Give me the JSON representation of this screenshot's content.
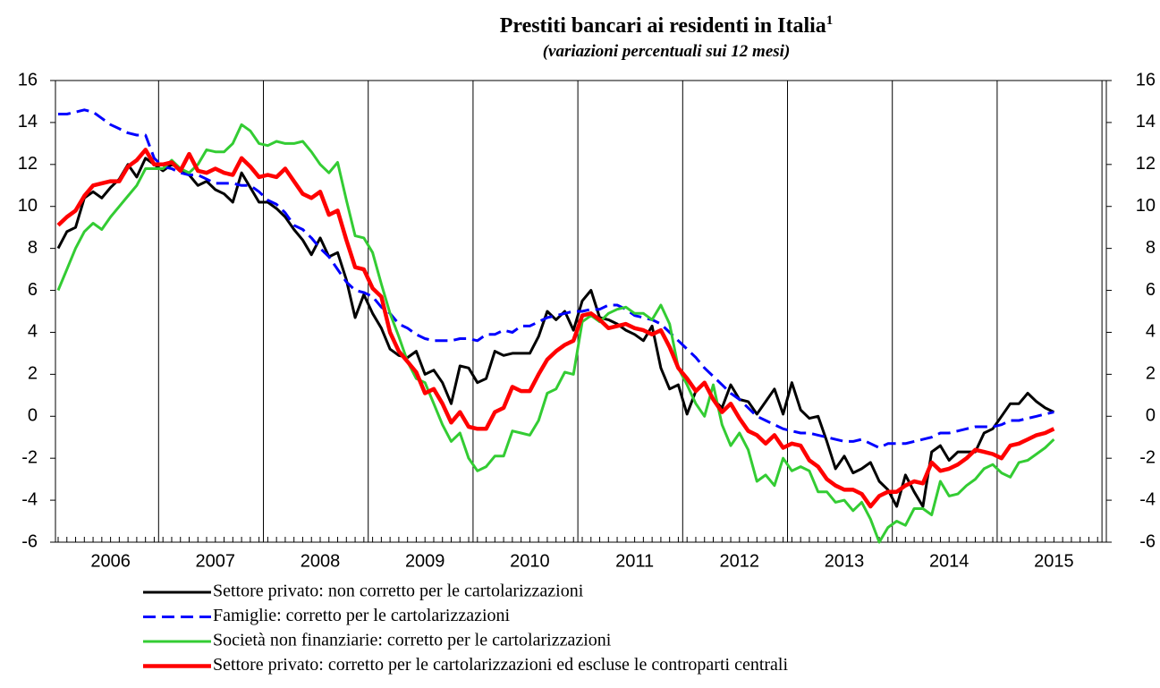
{
  "chart_data": {
    "type": "line",
    "title": "Prestiti bancari ai residenti in Italia",
    "title_note": "1",
    "subtitle": "(variazioni percentuali sui 12 mesi)",
    "categories": [
      null,
      null,
      null,
      null,
      null,
      null,
      "2006",
      null,
      null,
      null,
      null,
      null,
      null,
      null,
      null,
      null,
      null,
      null,
      "2007",
      null,
      null,
      null,
      null,
      null,
      null,
      null,
      null,
      null,
      null,
      null,
      "2008",
      null,
      null,
      null,
      null,
      null,
      null,
      null,
      null,
      null,
      null,
      null,
      "2009",
      null,
      null,
      null,
      null,
      null,
      null,
      null,
      null,
      null,
      null,
      null,
      "2010",
      null,
      null,
      null,
      null,
      null,
      null,
      null,
      null,
      null,
      null,
      null,
      "2011",
      null,
      null,
      null,
      null,
      null,
      null,
      null,
      null,
      null,
      null,
      null,
      "2012",
      null,
      null,
      null,
      null,
      null,
      null,
      null,
      null,
      null,
      null,
      null,
      "2013",
      null,
      null,
      null,
      null,
      null,
      null,
      null,
      null,
      null,
      null,
      null,
      "2014",
      null,
      null,
      null,
      null,
      null,
      null,
      null,
      null,
      null,
      null,
      null,
      "2015",
      null,
      null,
      null,
      null,
      null,
      null
    ],
    "ylim": [
      -6,
      16
    ],
    "yticks": [
      -6,
      -4,
      -2,
      0,
      2,
      4,
      6,
      8,
      10,
      12,
      14,
      16
    ],
    "y2lim": [
      -6,
      16
    ],
    "y2ticks": [
      -6,
      -4,
      -2,
      0,
      2,
      4,
      6,
      8,
      10,
      12,
      14,
      16
    ],
    "legend": "bottom",
    "series": [
      {
        "name": "Settore privato: non corretto per le cartolarizzazioni",
        "color": "#000000",
        "line_style": "solid",
        "values": [
          8.0,
          8.8,
          9.0,
          10.4,
          10.7,
          10.4,
          10.9,
          11.3,
          12.0,
          11.4,
          12.3,
          12.0,
          11.7,
          12.0,
          11.8,
          11.5,
          11.0,
          11.2,
          10.8,
          10.6,
          10.2,
          11.6,
          10.9,
          10.2,
          10.2,
          9.9,
          9.5,
          8.9,
          8.4,
          7.7,
          8.5,
          7.6,
          7.8,
          6.5,
          4.7,
          5.8,
          4.9,
          4.2,
          3.2,
          2.9,
          2.8,
          3.1,
          2.0,
          2.2,
          1.6,
          0.6,
          2.4,
          2.3,
          1.6,
          1.8,
          3.1,
          2.9,
          3.0,
          3.0,
          3.0,
          3.8,
          5.0,
          4.6,
          5.0,
          4.1,
          5.5,
          6.0,
          4.7,
          4.6,
          4.4,
          4.1,
          3.9,
          3.6,
          4.3,
          2.3,
          1.3,
          1.5,
          0.1,
          1.2,
          1.6,
          0.8,
          0.4,
          1.5,
          0.8,
          0.7,
          0.1,
          0.7,
          1.3,
          0.1,
          1.6,
          0.3,
          -0.1,
          0.0,
          -1.2,
          -2.5,
          -1.9,
          -2.7,
          -2.5,
          -2.2,
          -3.1,
          -3.5,
          -4.3,
          -2.8,
          -3.6,
          -4.3,
          -1.7,
          -1.4,
          -2.1,
          -1.7,
          -1.7,
          -1.7,
          -0.8,
          -0.6,
          0.0,
          0.6,
          0.6,
          1.1,
          0.7,
          0.4,
          0.2,
          null,
          null,
          null,
          null,
          null,
          null
        ]
      },
      {
        "name": "Famiglie: corretto per le cartolarizzazioni",
        "color": "#0000ff",
        "line_style": "dashed",
        "values": [
          14.4,
          14.4,
          14.5,
          14.6,
          14.5,
          14.2,
          13.9,
          13.7,
          13.5,
          13.4,
          13.4,
          12.3,
          11.9,
          11.8,
          11.6,
          11.5,
          11.5,
          11.3,
          11.1,
          11.1,
          11.1,
          11.0,
          11.0,
          10.7,
          10.3,
          10.1,
          9.7,
          9.1,
          8.9,
          8.5,
          8.0,
          7.6,
          7.0,
          6.4,
          6.0,
          5.9,
          5.7,
          5.2,
          4.9,
          4.4,
          4.2,
          3.9,
          3.7,
          3.6,
          3.6,
          3.6,
          3.7,
          3.7,
          3.6,
          3.9,
          3.9,
          4.1,
          4.0,
          4.3,
          4.3,
          4.5,
          4.7,
          4.8,
          4.9,
          5.0,
          5.0,
          5.1,
          5.1,
          5.3,
          5.3,
          5.1,
          4.8,
          4.7,
          4.6,
          4.4,
          4.0,
          3.6,
          3.2,
          2.8,
          2.3,
          1.9,
          1.5,
          1.1,
          0.8,
          0.4,
          0.0,
          -0.2,
          -0.4,
          -0.6,
          -0.7,
          -0.8,
          -0.8,
          -0.9,
          -1.0,
          -1.1,
          -1.2,
          -1.2,
          -1.1,
          -1.3,
          -1.5,
          -1.3,
          -1.3,
          -1.3,
          -1.2,
          -1.1,
          -1.0,
          -0.8,
          -0.8,
          -0.7,
          -0.6,
          -0.5,
          -0.5,
          -0.5,
          -0.4,
          -0.2,
          -0.2,
          -0.1,
          0.0,
          0.1,
          0.2,
          null,
          null,
          null,
          null,
          null,
          null
        ]
      },
      {
        "name": "Società non finanziarie: corretto per le cartolarizzazioni",
        "color": "#33cc33",
        "line_style": "solid",
        "values": [
          6.0,
          7.0,
          8.0,
          8.8,
          9.2,
          8.9,
          9.5,
          10.0,
          10.5,
          11.0,
          11.8,
          11.8,
          11.8,
          12.2,
          11.8,
          11.6,
          12.0,
          12.7,
          12.6,
          12.6,
          13.0,
          13.9,
          13.6,
          13.0,
          12.9,
          13.1,
          13.0,
          13.0,
          13.1,
          12.6,
          12.0,
          11.6,
          12.1,
          10.3,
          8.6,
          8.5,
          7.8,
          6.3,
          4.9,
          3.8,
          2.6,
          1.8,
          1.6,
          0.6,
          -0.4,
          -1.2,
          -0.8,
          -2.0,
          -2.6,
          -2.4,
          -1.9,
          -1.9,
          -0.7,
          -0.8,
          -0.9,
          -0.2,
          1.1,
          1.3,
          2.1,
          2.0,
          4.5,
          4.8,
          4.5,
          4.9,
          5.1,
          5.2,
          4.9,
          4.9,
          4.6,
          5.3,
          4.4,
          2.3,
          1.5,
          0.6,
          0.0,
          1.5,
          -0.4,
          -1.4,
          -0.8,
          -1.6,
          -3.1,
          -2.8,
          -3.3,
          -2.0,
          -2.6,
          -2.4,
          -2.6,
          -3.6,
          -3.6,
          -4.1,
          -4.0,
          -4.5,
          -4.1,
          -4.9,
          -6.0,
          -5.3,
          -5.0,
          -5.2,
          -4.4,
          -4.4,
          -4.7,
          -3.1,
          -3.8,
          -3.7,
          -3.3,
          -3.0,
          -2.5,
          -2.3,
          -2.7,
          -2.9,
          -2.2,
          -2.1,
          -1.8,
          -1.5,
          -1.1,
          null,
          null,
          null,
          null,
          null,
          null
        ]
      },
      {
        "name": "Settore privato: corretto per le cartolarizzazioni ed escluse le controparti centrali",
        "color": "#ff0000",
        "line_style": "solid",
        "values": [
          9.1,
          9.5,
          9.8,
          10.5,
          11.0,
          11.1,
          11.2,
          11.2,
          11.9,
          12.2,
          12.7,
          12.0,
          12.0,
          12.1,
          11.7,
          12.5,
          11.7,
          11.6,
          11.8,
          11.6,
          11.5,
          12.3,
          11.9,
          11.4,
          11.5,
          11.4,
          11.8,
          11.2,
          10.6,
          10.4,
          10.7,
          9.6,
          9.8,
          8.4,
          7.1,
          7.0,
          6.1,
          5.7,
          4.0,
          3.1,
          2.6,
          2.1,
          1.1,
          1.3,
          0.6,
          -0.3,
          0.2,
          -0.5,
          -0.6,
          -0.6,
          0.2,
          0.4,
          1.4,
          1.2,
          1.2,
          2.0,
          2.7,
          3.1,
          3.4,
          3.6,
          4.8,
          4.9,
          4.6,
          4.2,
          4.3,
          4.4,
          4.2,
          4.1,
          3.9,
          4.1,
          3.3,
          2.3,
          1.8,
          1.2,
          1.6,
          0.8,
          0.2,
          0.6,
          -0.1,
          -0.7,
          -0.9,
          -1.3,
          -0.9,
          -1.5,
          -1.3,
          -1.4,
          -2.1,
          -2.4,
          -3.0,
          -3.3,
          -3.5,
          -3.5,
          -3.7,
          -4.3,
          -3.8,
          -3.6,
          -3.6,
          -3.3,
          -3.1,
          -3.2,
          -2.2,
          -2.6,
          -2.5,
          -2.3,
          -2.0,
          -1.6,
          -1.7,
          -1.8,
          -2.0,
          -1.4,
          -1.3,
          -1.1,
          -0.9,
          -0.8,
          -0.6,
          null,
          null,
          null,
          null,
          null,
          null
        ]
      }
    ]
  }
}
